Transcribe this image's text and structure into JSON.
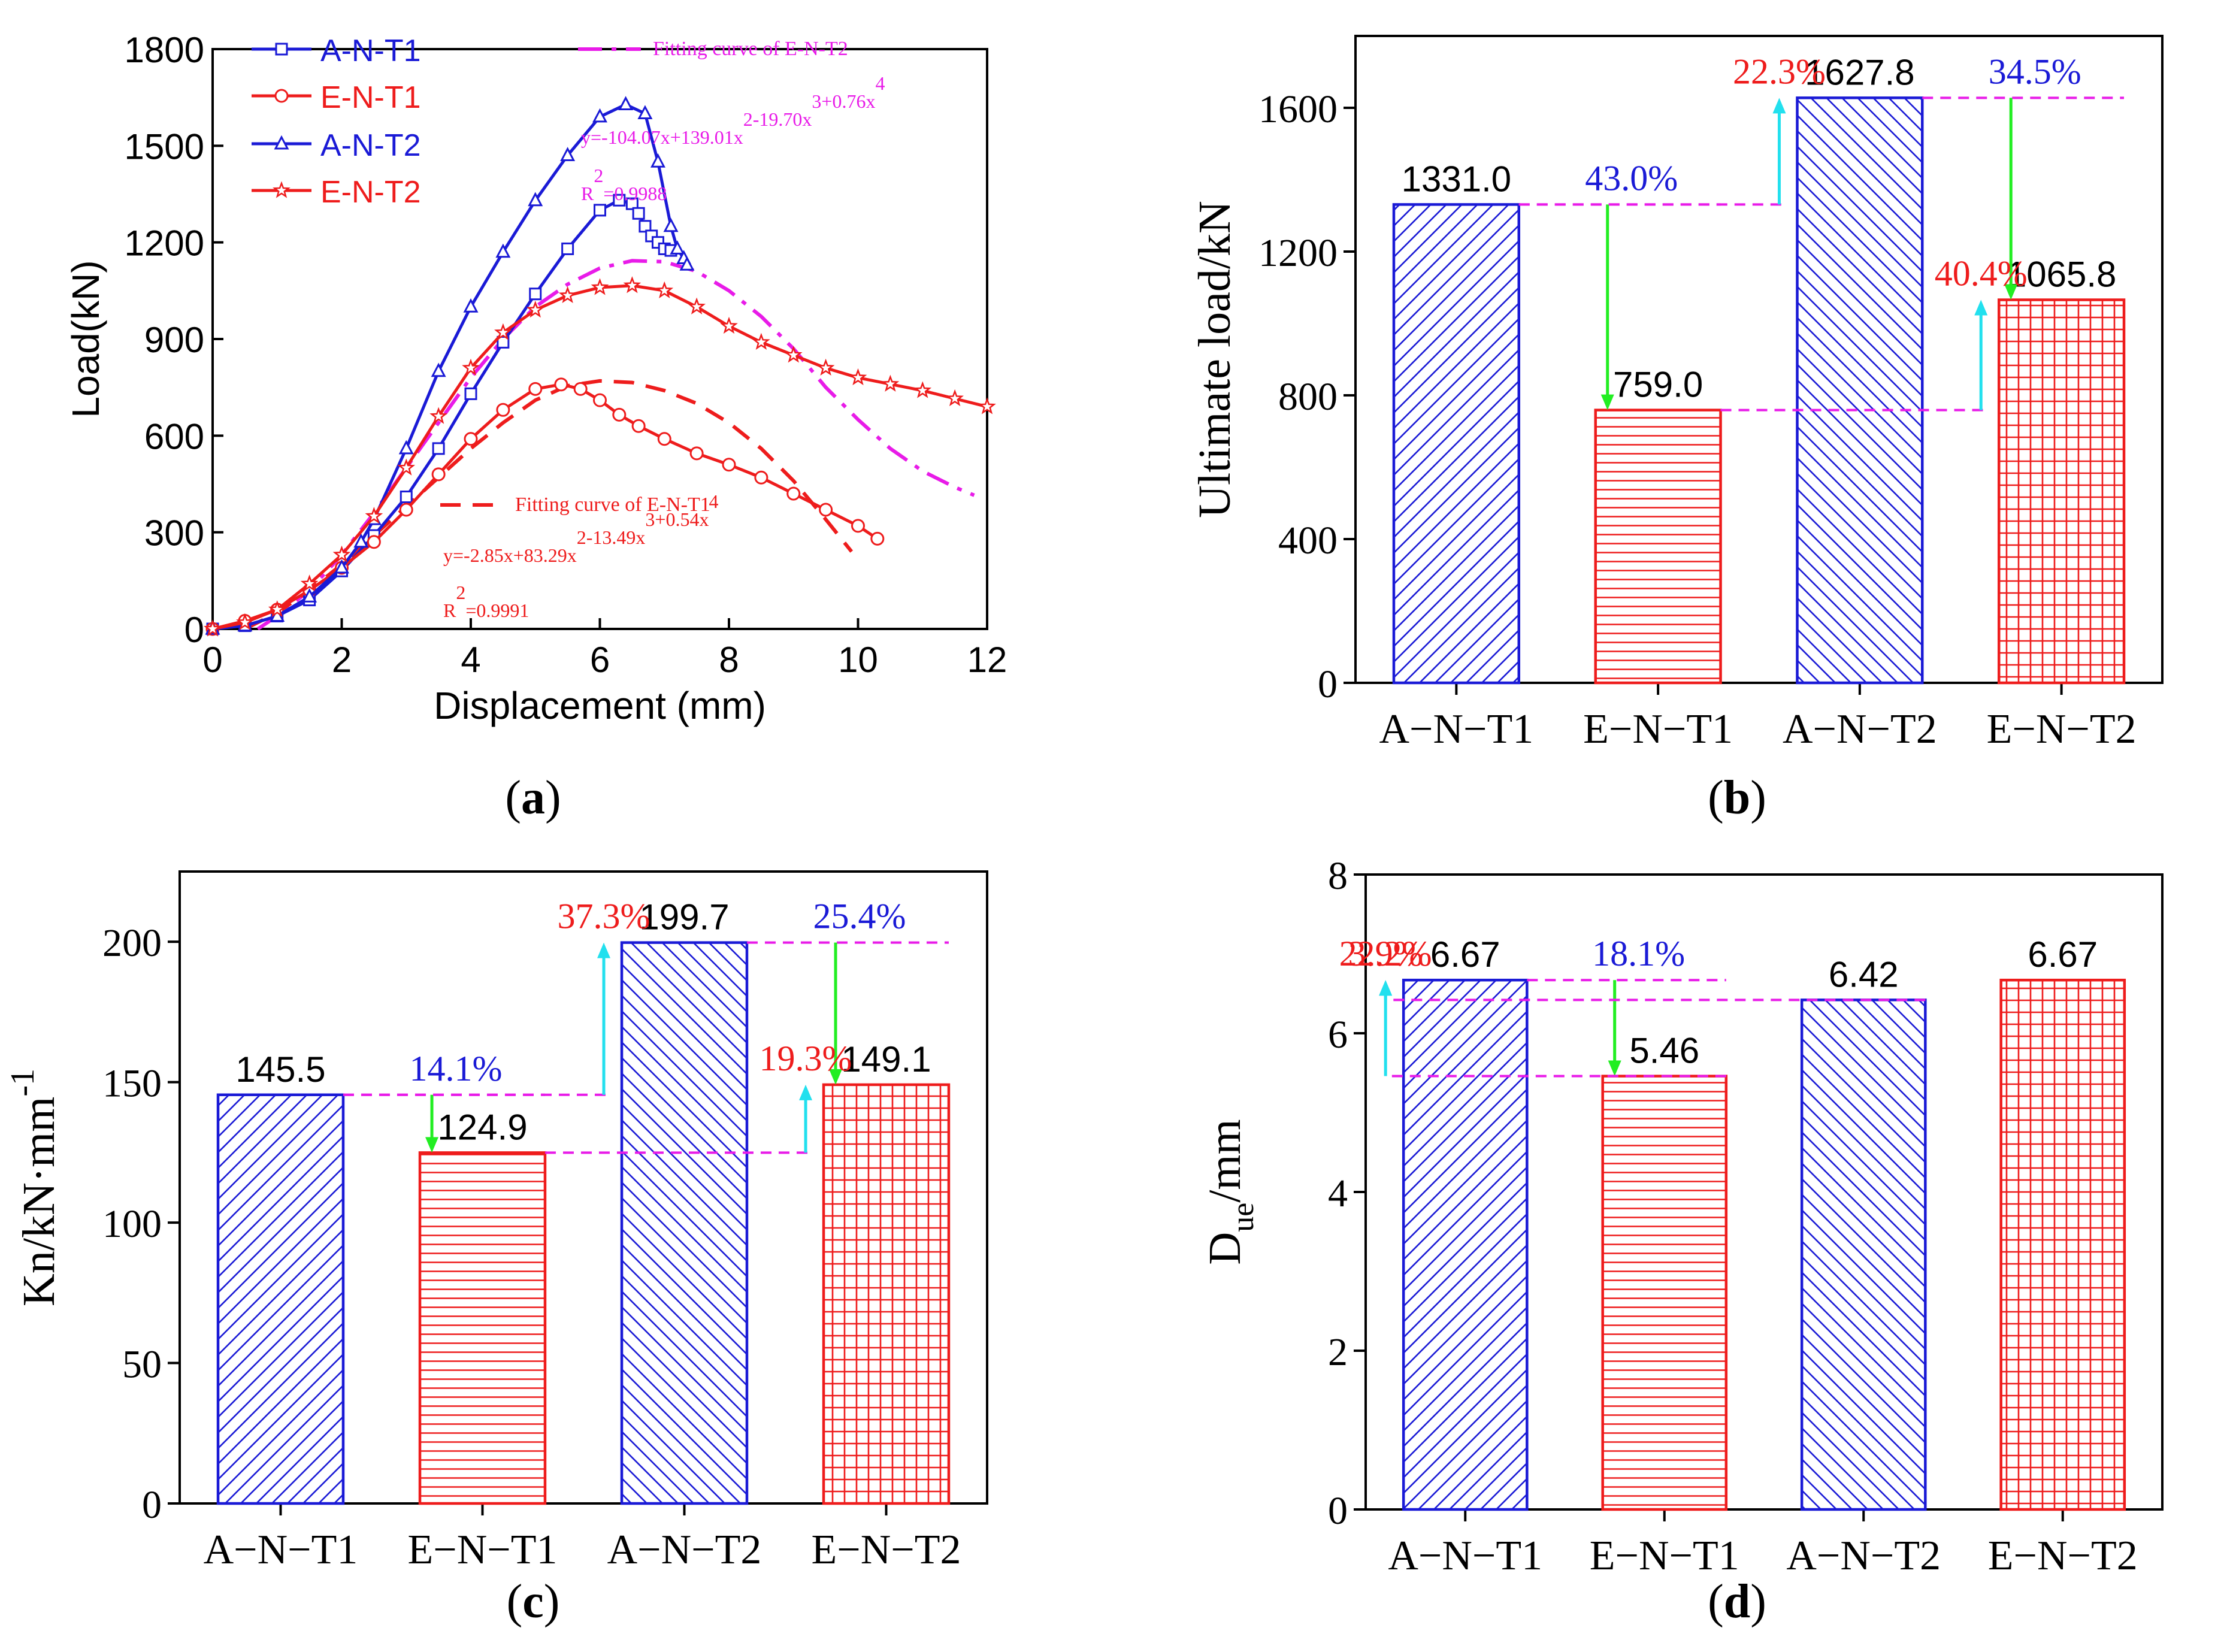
{
  "colors": {
    "blue": "#1a1ad6",
    "red": "#ee1c1c",
    "magenta": "#e81be8",
    "cyan": "#22e0ee",
    "green": "#22ee22",
    "black": "#000000"
  },
  "chart_data": [
    {
      "id": "a",
      "type": "line",
      "caption": "(a)",
      "caption_letter": "a",
      "xlabel": "Displacement (mm)",
      "ylabel": "Load(kN)",
      "xlim": [
        0,
        12
      ],
      "ylim": [
        0,
        1800
      ],
      "xticks": [
        0,
        2,
        4,
        6,
        8,
        10,
        12
      ],
      "yticks": [
        0,
        300,
        600,
        900,
        1200,
        1500,
        1800
      ],
      "series": [
        {
          "name": "A-N-T1",
          "color": "#1a1ad6",
          "marker": "square",
          "x": [
            0,
            0.5,
            1,
            1.5,
            2,
            2.5,
            3,
            3.5,
            4,
            4.5,
            5,
            5.5,
            6,
            6.3,
            6.5,
            6.6,
            6.7,
            6.8,
            6.9,
            7.0,
            7.1
          ],
          "y": [
            0,
            10,
            40,
            90,
            180,
            290,
            410,
            560,
            730,
            890,
            1040,
            1180,
            1300,
            1331,
            1320,
            1290,
            1250,
            1220,
            1200,
            1180,
            1175
          ]
        },
        {
          "name": "E-N-T1",
          "color": "#ee1c1c",
          "marker": "circle",
          "x": [
            0,
            0.5,
            1,
            1.5,
            2,
            2.5,
            3,
            3.5,
            4,
            4.5,
            5,
            5.4,
            5.7,
            6,
            6.3,
            6.6,
            7,
            7.5,
            8,
            8.5,
            9,
            9.5,
            10,
            10.3
          ],
          "y": [
            0,
            25,
            60,
            120,
            190,
            270,
            370,
            480,
            590,
            680,
            745,
            759,
            745,
            710,
            665,
            630,
            590,
            545,
            510,
            470,
            420,
            370,
            320,
            280
          ]
        },
        {
          "name": "A-N-T2",
          "color": "#1a1ad6",
          "marker": "triangle",
          "x": [
            0,
            0.5,
            1,
            1.5,
            2,
            2.3,
            2.5,
            3,
            3.5,
            4,
            4.5,
            5,
            5.5,
            6,
            6.4,
            6.7,
            6.9,
            7.1,
            7.2,
            7.3,
            7.35
          ],
          "y": [
            0,
            10,
            40,
            100,
            190,
            270,
            340,
            560,
            800,
            1000,
            1170,
            1330,
            1470,
            1590,
            1628,
            1600,
            1450,
            1250,
            1180,
            1150,
            1130
          ]
        },
        {
          "name": "E-N-T2",
          "color": "#ee1c1c",
          "marker": "star",
          "x": [
            0,
            0.5,
            1,
            1.5,
            2,
            2.5,
            3,
            3.5,
            4,
            4.5,
            5,
            5.5,
            6,
            6.5,
            7,
            7.5,
            8,
            8.5,
            9,
            9.5,
            10,
            10.5,
            11,
            11.5,
            12
          ],
          "y": [
            0,
            20,
            60,
            140,
            230,
            350,
            500,
            660,
            810,
            920,
            990,
            1035,
            1060,
            1066,
            1050,
            1000,
            940,
            890,
            850,
            810,
            780,
            760,
            740,
            715,
            690
          ]
        }
      ],
      "fits": [
        {
          "name": "Fitting curve of E-N-T2",
          "color": "#e81be8",
          "dash": "dashdot",
          "equation": "y=-104.07x+139.01x2-19.70x3+0.76x4",
          "r2": "R2=0.9988",
          "x": [
            0.7,
            1,
            1.5,
            2,
            2.5,
            3,
            3.5,
            4,
            4.5,
            5,
            5.5,
            6,
            6.5,
            7,
            7.5,
            8,
            8.5,
            9,
            9.5,
            10,
            10.5,
            11,
            11.5,
            11.8
          ],
          "y": [
            0,
            40,
            120,
            230,
            360,
            500,
            640,
            780,
            900,
            1000,
            1070,
            1120,
            1143,
            1140,
            1110,
            1050,
            970,
            870,
            750,
            650,
            560,
            490,
            440,
            415
          ]
        },
        {
          "name": "Fitting curve of E-N-T1",
          "color": "#ee1c1c",
          "dash": "dash",
          "equation": "y=-2.85x+83.29x2-13.49x3+0.54x4",
          "r2": "R2=0.9991",
          "x": [
            0.5,
            1,
            1.5,
            2,
            2.5,
            3,
            3.5,
            4,
            4.5,
            5,
            5.5,
            6,
            6.5,
            7,
            7.5,
            8,
            8.5,
            9,
            9.5,
            9.9
          ],
          "y": [
            0,
            50,
            120,
            200,
            290,
            380,
            470,
            560,
            640,
            710,
            755,
            770,
            765,
            740,
            700,
            640,
            560,
            460,
            340,
            240
          ]
        }
      ]
    },
    {
      "id": "b",
      "type": "bar",
      "caption": "(b)",
      "caption_letter": "b",
      "ylabel": "Ultimate load/kN",
      "ylim": [
        0,
        1800
      ],
      "yticks": [
        0,
        400,
        800,
        1200,
        1600
      ],
      "categories": [
        "A−N−T1",
        "E−N−T1",
        "A−N−T2",
        "E−N−T2"
      ],
      "values": [
        1331.0,
        759.0,
        1627.8,
        1065.8
      ],
      "value_labels": [
        "1331.0",
        "759.0",
        "1627.8",
        "1065.8"
      ],
      "bar_colors": [
        "#1a1ad6",
        "#ee1c1c",
        "#1a1ad6",
        "#ee1c1c"
      ],
      "patterns": [
        "diag-up",
        "horizontal",
        "diag-down",
        "grid"
      ],
      "annotations": [
        {
          "text": "43.0%",
          "color": "#1a1ad6",
          "from": 1331.0,
          "to": 759.0,
          "arrow": "green"
        },
        {
          "text": "22.3%",
          "color": "#ee1c1c",
          "from": 1331.0,
          "to": 1627.8,
          "arrow": "cyan"
        },
        {
          "text": "34.5%",
          "color": "#1a1ad6",
          "from": 1627.8,
          "to": 1065.8,
          "arrow": "green"
        },
        {
          "text": "40.4%",
          "color": "#ee1c1c",
          "from": 759.0,
          "to": 1065.8,
          "arrow": "cyan"
        }
      ]
    },
    {
      "id": "c",
      "type": "bar",
      "caption": "(c)",
      "caption_letter": "c",
      "ylabel": "Kn/kN·mm",
      "ylabel_sup": "-1",
      "ylim": [
        0,
        225
      ],
      "yticks": [
        0,
        50,
        100,
        150,
        200
      ],
      "categories": [
        "A−N−T1",
        "E−N−T1",
        "A−N−T2",
        "E−N−T2"
      ],
      "values": [
        145.5,
        124.9,
        199.7,
        149.1
      ],
      "value_labels": [
        "145.5",
        "124.9",
        "199.7",
        "149.1"
      ],
      "bar_colors": [
        "#1a1ad6",
        "#ee1c1c",
        "#1a1ad6",
        "#ee1c1c"
      ],
      "patterns": [
        "diag-up",
        "horizontal",
        "diag-down",
        "grid"
      ],
      "annotations": [
        {
          "text": "14.1%",
          "color": "#1a1ad6",
          "from": 145.5,
          "to": 124.9,
          "arrow": "green"
        },
        {
          "text": "37.3%",
          "color": "#ee1c1c",
          "from": 145.5,
          "to": 199.7,
          "arrow": "cyan"
        },
        {
          "text": "25.4%",
          "color": "#1a1ad6",
          "from": 199.7,
          "to": 149.1,
          "arrow": "green"
        },
        {
          "text": "19.3%",
          "color": "#ee1c1c",
          "from": 124.9,
          "to": 149.1,
          "arrow": "cyan"
        }
      ]
    },
    {
      "id": "d",
      "type": "bar",
      "caption": "(d)",
      "caption_letter": "d",
      "ylabel": "D",
      "ylabel_sub": "ue",
      "ylabel_suffix": "/mm",
      "ylim": [
        0,
        8
      ],
      "yticks": [
        0,
        2,
        4,
        6,
        8
      ],
      "categories": [
        "A−N−T1",
        "E−N−T1",
        "A−N−T2",
        "E−N−T2"
      ],
      "values": [
        6.67,
        5.46,
        6.42,
        6.67
      ],
      "value_labels": [
        "6.67",
        "5.46",
        "6.42",
        "6.67"
      ],
      "bar_colors": [
        "#1a1ad6",
        "#ee1c1c",
        "#1a1ad6",
        "#ee1c1c"
      ],
      "patterns": [
        "diag-up",
        "horizontal",
        "diag-down",
        "grid"
      ],
      "annotations": [
        {
          "text": "18.1%",
          "color": "#1a1ad6",
          "from": 6.67,
          "to": 5.46,
          "arrow": "green"
        },
        {
          "text": "3.9%",
          "color": "#ee1c1c",
          "from": 6.42,
          "to": 6.67,
          "arrow": "cyan"
        },
        {
          "text": "22.2%",
          "color": "#ee1c1c",
          "from": 5.46,
          "to": 6.67,
          "arrow": "cyan"
        }
      ]
    }
  ]
}
